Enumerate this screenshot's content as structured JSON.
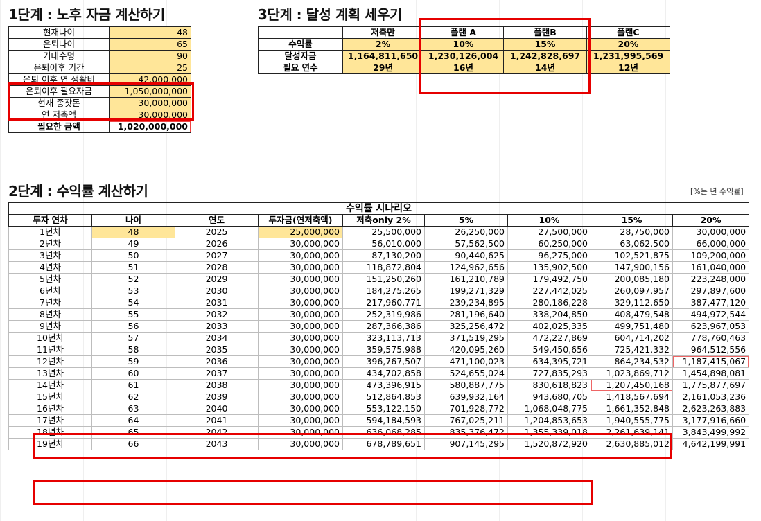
{
  "step1": {
    "title": "1단계 : 노후 자금 계산하기",
    "rows": [
      {
        "label": "현재나이",
        "value": "48"
      },
      {
        "label": "은퇴나이",
        "value": "65"
      },
      {
        "label": "기대수명",
        "value": "90"
      },
      {
        "label": "은퇴이후 기간",
        "value": "25"
      },
      {
        "label": "은퇴 이후 연 생활비",
        "value": "42,000,000"
      },
      {
        "label": "은퇴이후 필요자금",
        "value": "1,050,000,000"
      },
      {
        "label": "현재 종잣돈",
        "value": "30,000,000"
      },
      {
        "label": "연 저축액",
        "value": "30,000,000"
      },
      {
        "label": "필요한 금액",
        "value": "1,020,000,000"
      }
    ]
  },
  "step3": {
    "title": "3단계 : 달성 계획 세우기",
    "columns": [
      "저축만",
      "플랜 A",
      "플랜B",
      "플랜C"
    ],
    "rows": [
      {
        "label": "수익률",
        "values": [
          "2%",
          "10%",
          "15%",
          "20%"
        ]
      },
      {
        "label": "달성자금",
        "values": [
          "1,164,811,650",
          "1,230,126,004",
          "1,242,828,697",
          "1,231,995,569"
        ]
      },
      {
        "label": "필요 연수",
        "values": [
          "29년",
          "16년",
          "14년",
          "12년"
        ]
      }
    ]
  },
  "step2": {
    "title": "2단계 : 수익률 계산하기",
    "note": "[%는 년 수익률]",
    "scenario_header": "수익률 시나리오",
    "headers": [
      "투자 연차",
      "나이",
      "연도",
      "투자금(연저축액)",
      "저축only 2%",
      "5%",
      "10%",
      "15%",
      "20%"
    ],
    "rows": [
      [
        "1년차",
        "48",
        "2025",
        "25,000,000",
        "25,500,000",
        "26,250,000",
        "27,500,000",
        "28,750,000",
        "30,000,000"
      ],
      [
        "2년차",
        "49",
        "2026",
        "30,000,000",
        "56,010,000",
        "57,562,500",
        "60,250,000",
        "63,062,500",
        "66,000,000"
      ],
      [
        "3년차",
        "50",
        "2027",
        "30,000,000",
        "87,130,200",
        "90,440,625",
        "96,275,000",
        "102,521,875",
        "109,200,000"
      ],
      [
        "4년차",
        "51",
        "2028",
        "30,000,000",
        "118,872,804",
        "124,962,656",
        "135,902,500",
        "147,900,156",
        "161,040,000"
      ],
      [
        "5년차",
        "52",
        "2029",
        "30,000,000",
        "151,250,260",
        "161,210,789",
        "179,492,750",
        "200,085,180",
        "223,248,000"
      ],
      [
        "6년차",
        "53",
        "2030",
        "30,000,000",
        "184,275,265",
        "199,271,329",
        "227,442,025",
        "260,097,957",
        "297,897,600"
      ],
      [
        "7년차",
        "54",
        "2031",
        "30,000,000",
        "217,960,771",
        "239,234,895",
        "280,186,228",
        "329,112,650",
        "387,477,120"
      ],
      [
        "8년차",
        "55",
        "2032",
        "30,000,000",
        "252,319,986",
        "281,196,640",
        "338,204,850",
        "408,479,548",
        "494,972,544"
      ],
      [
        "9년차",
        "56",
        "2033",
        "30,000,000",
        "287,366,386",
        "325,256,472",
        "402,025,335",
        "499,751,480",
        "623,967,053"
      ],
      [
        "10년차",
        "57",
        "2034",
        "30,000,000",
        "323,113,713",
        "371,519,295",
        "472,227,869",
        "604,714,202",
        "778,760,463"
      ],
      [
        "11년차",
        "58",
        "2035",
        "30,000,000",
        "359,575,988",
        "420,095,260",
        "549,450,656",
        "725,421,332",
        "964,512,556"
      ],
      [
        "12년차",
        "59",
        "2036",
        "30,000,000",
        "396,767,507",
        "471,100,023",
        "634,395,721",
        "864,234,532",
        "1,187,415,067"
      ],
      [
        "13년차",
        "60",
        "2037",
        "30,000,000",
        "434,702,858",
        "524,655,024",
        "727,835,293",
        "1,023,869,712",
        "1,454,898,081"
      ],
      [
        "14년차",
        "61",
        "2038",
        "30,000,000",
        "473,396,915",
        "580,887,775",
        "830,618,823",
        "1,207,450,168",
        "1,775,877,697"
      ],
      [
        "15년차",
        "62",
        "2039",
        "30,000,000",
        "512,864,853",
        "639,932,164",
        "943,680,705",
        "1,418,567,694",
        "2,161,053,236"
      ],
      [
        "16년차",
        "63",
        "2040",
        "30,000,000",
        "553,122,150",
        "701,928,772",
        "1,068,048,775",
        "1,661,352,848",
        "2,623,263,883"
      ],
      [
        "17년차",
        "64",
        "2041",
        "30,000,000",
        "594,184,593",
        "767,025,211",
        "1,204,853,653",
        "1,940,555,775",
        "3,177,916,660"
      ],
      [
        "18년차",
        "65",
        "2042",
        "30,000,000",
        "636,068,285",
        "835,376,472",
        "1,355,339,018",
        "2,261,639,141",
        "3,843,499,992"
      ],
      [
        "19년차",
        "66",
        "2043",
        "30,000,000",
        "678,789,651",
        "907,145,295",
        "1,520,872,920",
        "2,630,885,012",
        "4,642,199,991"
      ]
    ]
  },
  "colors": {
    "input_fill": "#ffe699",
    "highlight": "#e60000",
    "border": "#bdbdbd"
  }
}
